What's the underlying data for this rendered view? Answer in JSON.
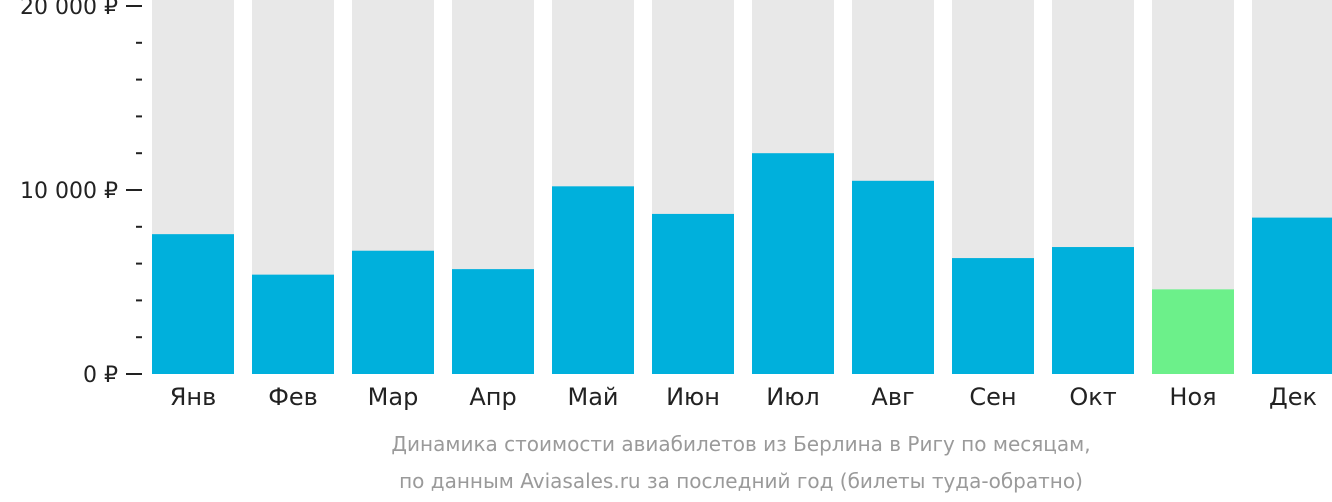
{
  "chart_data": {
    "type": "bar",
    "categories": [
      "Янв",
      "Фев",
      "Мар",
      "Апр",
      "Май",
      "Июн",
      "Июл",
      "Авг",
      "Сен",
      "Окт",
      "Ноя",
      "Дек"
    ],
    "values": [
      7600,
      5400,
      6700,
      5700,
      10200,
      8700,
      12000,
      10500,
      6300,
      6900,
      4600,
      8500
    ],
    "highlight_index": 10,
    "ylim": [
      0,
      20000
    ],
    "yticks": [
      {
        "value": 0,
        "label": "0 ₽"
      },
      {
        "value": 10000,
        "label": "10 000 ₽"
      },
      {
        "value": 20000,
        "label": "20 000 ₽"
      }
    ],
    "minor_tick_step": 2000,
    "caption_lines": [
      "Динамика стоимости авиабилетов из Берлина в Ригу по месяцам,",
      "по данным Aviasales.ru за последний год (билеты туда-обратно)"
    ],
    "colors": {
      "bar": "#00b0dc",
      "highlight": "#6cf08a",
      "background_bar": "#e8e8e8",
      "axis": "#222222",
      "caption": "#9a9a9a"
    }
  }
}
